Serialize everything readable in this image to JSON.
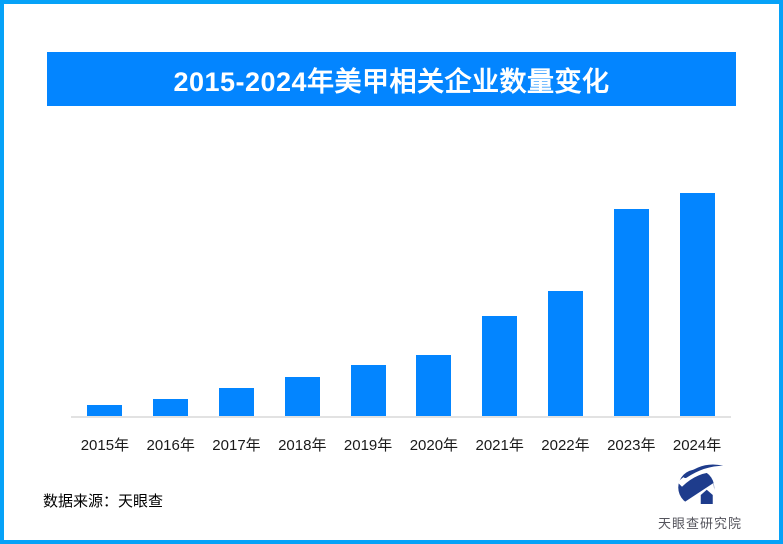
{
  "chart_data": {
    "type": "bar",
    "title": "2015-2024年美甲相关企业数量变化",
    "categories": [
      "2015年",
      "2016年",
      "2017年",
      "2018年",
      "2019年",
      "2020年",
      "2021年",
      "2022年",
      "2023年",
      "2024年"
    ],
    "values_relative": [
      12,
      18,
      29,
      40,
      52,
      62,
      101,
      126,
      208,
      224
    ],
    "values_note": "no y-axis ticks or data labels shown in the image; values are relative bar heights (max bar = 224)",
    "xlabel": "",
    "ylabel": "",
    "grid": false,
    "legend": false,
    "bar_color": "#0385FF"
  },
  "footer": {
    "source": "数据来源：天眼查",
    "logo_text": "天眼查研究院"
  },
  "icons": {
    "logo_mark": "tianyancha-eye-logo"
  },
  "colors": {
    "border": "#06A2F8",
    "banner": "#0385FF",
    "bar": "#0385FF",
    "axis_line": "#E2E2E2",
    "logo_navy": "#1E3C8C",
    "logo_text": "#54545C",
    "title_text": "#FFFFFF",
    "tick_text": "#1A1A1A"
  }
}
